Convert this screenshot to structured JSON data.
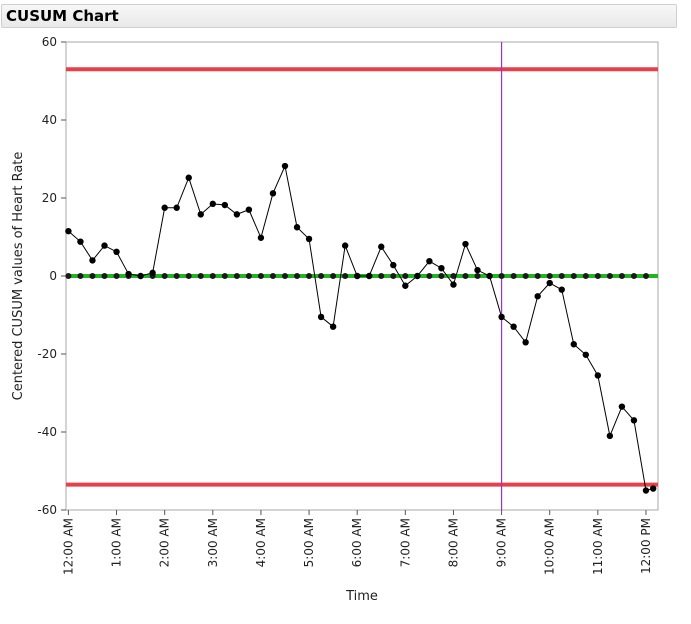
{
  "window": {
    "title": "CUSUM Chart"
  },
  "chart_data": {
    "type": "line",
    "title": "",
    "xlabel": "Time",
    "ylabel": "Centered CUSUM values of Heart Rate",
    "ylim": [
      -60,
      60
    ],
    "yticks": [
      -60,
      -40,
      -20,
      0,
      20,
      40,
      60
    ],
    "ytick_labels": [
      "-60",
      "-40",
      "-20",
      "0",
      "20",
      "40",
      "60"
    ],
    "xlim_hours": [
      -0.05,
      12.25
    ],
    "xticks_hours": [
      0,
      1,
      2,
      3,
      4,
      5,
      6,
      7,
      8,
      9,
      10,
      11,
      12
    ],
    "xtick_labels": [
      "12:00 AM",
      "1:00 AM",
      "2:00 AM",
      "3:00 AM",
      "4:00 AM",
      "5:00 AM",
      "6:00 AM",
      "7:00 AM",
      "8:00 AM",
      "9:00 AM",
      "10:00 AM",
      "11:00 AM",
      "12:00 PM"
    ],
    "limits": {
      "upper": 53,
      "lower": -53.5,
      "center": 0
    },
    "vertical_marker_hours": 9,
    "colors": {
      "limit": "#e8404a",
      "center": "#22b422",
      "series": "#000000",
      "marker_line": "#9933cc"
    },
    "grid": false,
    "series": [
      {
        "x_hours": [
          0,
          0.25,
          0.5,
          0.75,
          1,
          1.25,
          1.5,
          1.75,
          2,
          2.25,
          2.5,
          2.75,
          3,
          3.25,
          3.5,
          3.75,
          4,
          4.25,
          4.5,
          4.75,
          5,
          5.25,
          5.5,
          5.75,
          6,
          6.25,
          6.5,
          6.75,
          7,
          7.25,
          7.5,
          7.75,
          8,
          8.25,
          8.5,
          8.75,
          9,
          9.25,
          9.5,
          9.75,
          10,
          10.25,
          10.5,
          10.75,
          11,
          11.25,
          11.5,
          11.75,
          12,
          12.15
        ],
        "values": [
          11.5,
          8.8,
          4,
          7.8,
          6.2,
          0.5,
          0,
          0.8,
          17.5,
          17.5,
          25.2,
          15.8,
          18.5,
          18.2,
          15.8,
          17,
          9.8,
          21.2,
          28.2,
          12.5,
          9.5,
          -10.5,
          -13,
          7.8,
          0,
          0,
          7.5,
          2.8,
          -2.5,
          0,
          3.8,
          2,
          -2.2,
          8.2,
          1.5,
          0,
          -10.5,
          -13,
          -17,
          -5.2,
          -1.8,
          -3.5,
          -17.5,
          -20.2,
          -25.5,
          -41,
          -33.5,
          -37,
          -55,
          -54.5
        ]
      },
      {
        "x_hours": [
          0,
          0.25,
          0.5,
          0.75,
          1,
          1.25,
          1.5,
          1.75,
          2,
          2.25,
          2.5,
          2.75,
          3,
          3.25,
          3.5,
          3.75,
          4,
          4.25,
          4.5,
          4.75,
          5,
          5.25,
          5.5,
          5.75,
          6,
          6.25,
          6.5,
          6.75,
          7,
          7.25,
          7.5,
          7.75,
          8,
          8.25,
          8.5,
          8.75,
          9,
          9.25,
          9.5,
          9.75,
          10,
          10.25,
          10.5,
          10.75,
          11,
          11.25,
          11.5,
          11.75,
          12
        ],
        "values": [
          0,
          0,
          0,
          0,
          0,
          0,
          0,
          0,
          0,
          0,
          0,
          0,
          0,
          0,
          0,
          0,
          0,
          0,
          0,
          0,
          0,
          0,
          0,
          0,
          0,
          0,
          0,
          0,
          0,
          0,
          0,
          0,
          0,
          0,
          0,
          0,
          0,
          0,
          0,
          0,
          0,
          0,
          0,
          0,
          0,
          0,
          0,
          0,
          0
        ]
      }
    ]
  }
}
